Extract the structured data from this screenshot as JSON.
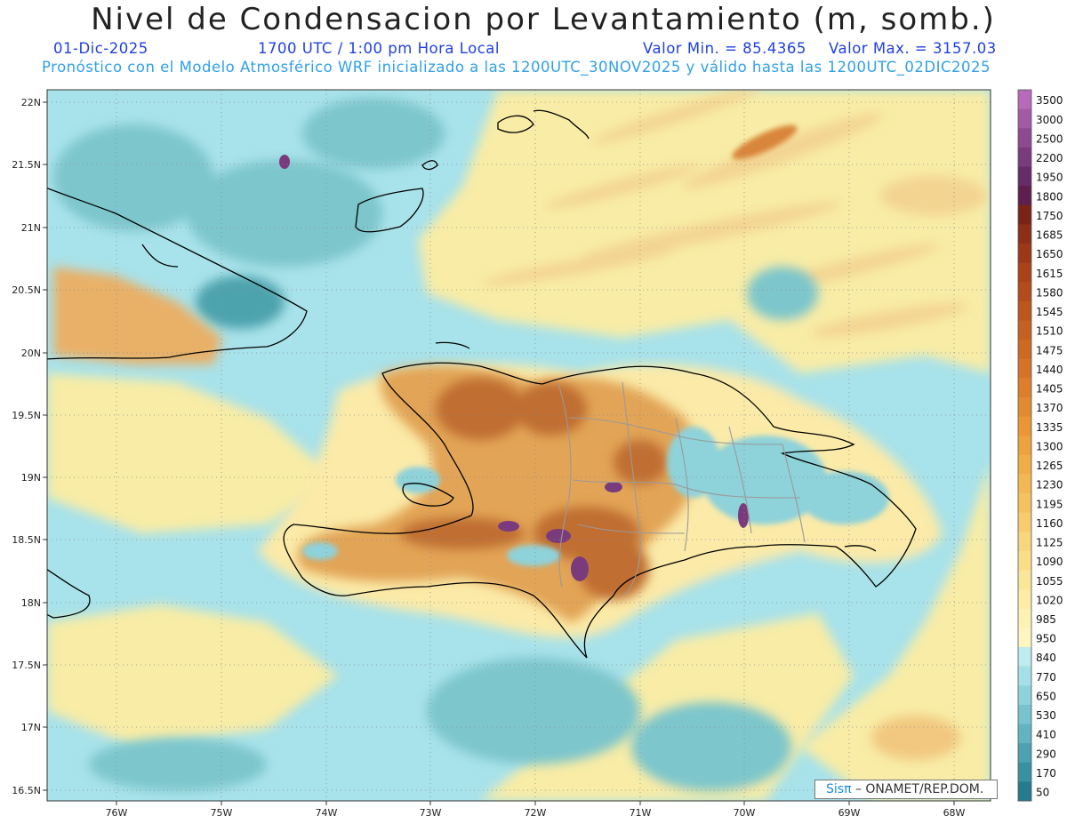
{
  "title": "Nivel de Condensacion por Levantamiento (m, somb.)",
  "date": "01-Dic-2025",
  "time": "1700 UTC / 1:00 pm Hora Local",
  "min_label": "Valor Min. = 85.4365",
  "max_label": "Valor Max. = 3157.03",
  "model_line": "Pronóstico con el Modelo Atmosférico WRF inicializado a las 1200UTC_30NOV2025 y válido hasta las  1200UTC_02DIC2025",
  "credit_logo": "Sisπ",
  "credit_text": "ONAMET/REP.DOM.",
  "lat_labels": [
    "22N",
    "21.5N",
    "21N",
    "20.5N",
    "20N",
    "19.5N",
    "19N",
    "18.5N",
    "18N",
    "17.5N",
    "17N",
    "16.5N"
  ],
  "lon_labels": [
    "76W",
    "75W",
    "74W",
    "73W",
    "72W",
    "71W",
    "70W",
    "69W",
    "68W"
  ],
  "colorbar": {
    "labels": [
      "3500",
      "3000",
      "2500",
      "2200",
      "1950",
      "1800",
      "1750",
      "1685",
      "1650",
      "1615",
      "1580",
      "1545",
      "1510",
      "1475",
      "1440",
      "1405",
      "1370",
      "1335",
      "1300",
      "1265",
      "1230",
      "1195",
      "1160",
      "1125",
      "1090",
      "1055",
      "1020",
      "985",
      "950",
      "840",
      "770",
      "650",
      "530",
      "410",
      "290",
      "170",
      "50"
    ],
    "colors": [
      "#b76ab9",
      "#a25aa5",
      "#8e4a90",
      "#7a3b7c",
      "#662c68",
      "#5e1e4e",
      "#7a2418",
      "#8c2e18",
      "#9a3818",
      "#a8421a",
      "#b24c1c",
      "#bc561e",
      "#c46020",
      "#cc6a24",
      "#d47428",
      "#dc7e2c",
      "#e28a30",
      "#e89636",
      "#eca23e",
      "#f0ae48",
      "#f2b854",
      "#f4c260",
      "#f6cc6e",
      "#f8d67c",
      "#f9de8a",
      "#fae698",
      "#fbeca6",
      "#fcf2b4",
      "#fdf6c2",
      "#bfeaee",
      "#a4e0e6",
      "#8ed2da",
      "#78c4ce",
      "#62b4c0",
      "#4ca2b0",
      "#3890a0",
      "#267c8e"
    ]
  },
  "colors": {
    "sea_light": "#a8e2ea",
    "sea_mid": "#7dc6cc",
    "sea_dark": "#4ea3ad",
    "pale_yellow": "#f8eca6",
    "orange": "#e0a050",
    "brown": "#b8642a",
    "purple": "#7a3b7c"
  }
}
